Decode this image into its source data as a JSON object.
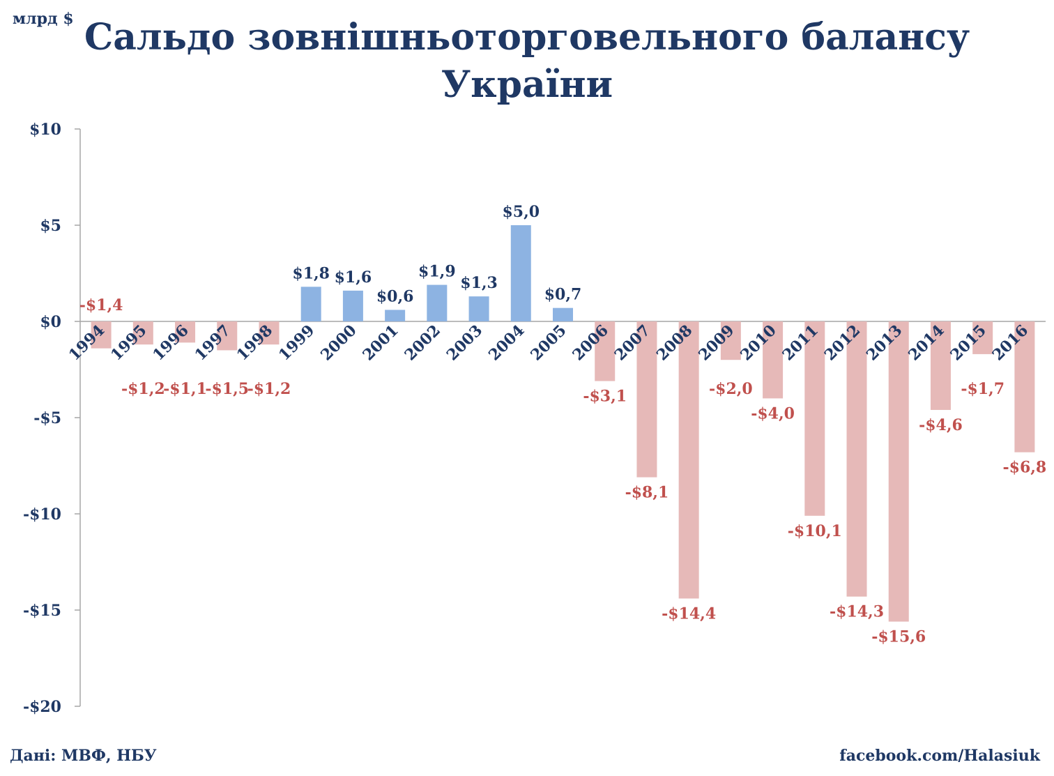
{
  "header": {
    "unit": "млрд $",
    "title_line1": "Сальдо зовнішньоторговельного  балансу",
    "title_line2": "України"
  },
  "footer": {
    "source": "Дані: МВФ, НБУ",
    "credit": "facebook.com/Halasiuk"
  },
  "colors": {
    "positive": "#8db3e2",
    "negative": "#e6b9b8",
    "positive_label": "#1f3864",
    "negative_label": "#c0504d",
    "axis": "#a6a6a6",
    "text": "#1f3864"
  },
  "chart_data": {
    "type": "bar",
    "title": "Сальдо зовнішньоторговельного  балансу України",
    "ylabel": "млрд $",
    "xlabel": "",
    "ylim": [
      -20,
      10
    ],
    "yticks": [
      10,
      5,
      0,
      -5,
      -10,
      -15,
      -20
    ],
    "ytick_labels": [
      "$10",
      "$5",
      "$0",
      "-$5",
      "-$10",
      "-$15",
      "-$20"
    ],
    "categories": [
      "1994",
      "1995",
      "1996",
      "1997",
      "1998",
      "1999",
      "2000",
      "2001",
      "2002",
      "2003",
      "2004",
      "2005",
      "2006",
      "2007",
      "2008",
      "2009",
      "2010",
      "2011",
      "2012",
      "2013",
      "2014",
      "2015",
      "2016"
    ],
    "values": [
      -1.4,
      -1.2,
      -1.1,
      -1.5,
      -1.2,
      1.8,
      1.6,
      0.6,
      1.9,
      1.3,
      5.0,
      0.7,
      -3.1,
      -8.1,
      -14.4,
      -2.0,
      -4.0,
      -10.1,
      -14.3,
      -15.6,
      -4.6,
      -1.7,
      -6.8
    ],
    "data_labels": [
      "-$1,4",
      "-$1,2",
      "-$1,1",
      "-$1,5",
      "-$1,2",
      "$1,8",
      "$1,6",
      "$0,6",
      "$1,9",
      "$1,3",
      "$5,0",
      "$0,7",
      "-$3,1",
      "-$8,1",
      "-$14,4",
      "-$2,0",
      "-$4,0",
      "-$10,1",
      "-$14,3",
      "-$15,6",
      "-$4,6",
      "-$1,7",
      "-$6,8"
    ],
    "grid": false,
    "legend": "none"
  }
}
